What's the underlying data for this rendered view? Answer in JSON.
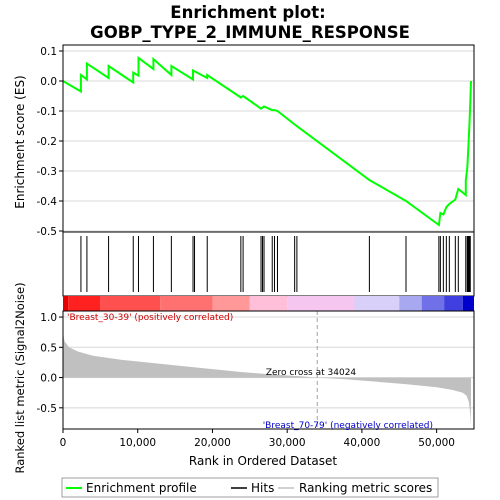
{
  "chart_data": {
    "type": "line",
    "title_line1": "Enrichment plot:",
    "title_line2": "GOBP_TYPE_2_IMMUNE_RESPONSE",
    "es_panel": {
      "ylabel": "Enrichment score (ES)",
      "ylim": [
        -0.5,
        0.1
      ],
      "yticks": [
        {
          "v": 0.1,
          "label": "0.1"
        },
        {
          "v": 0.0,
          "label": "0.0"
        },
        {
          "v": -0.1,
          "label": "-0.1"
        },
        {
          "v": -0.2,
          "label": "-0.2"
        },
        {
          "v": -0.3,
          "label": "-0.3"
        },
        {
          "v": -0.4,
          "label": "-0.4"
        },
        {
          "v": -0.5,
          "label": "-0.5"
        }
      ],
      "series": [
        {
          "name": "Enrichment profile",
          "color": "#00ff00",
          "x": [
            0,
            2400,
            2400,
            3200,
            3200,
            6100,
            6100,
            9400,
            9400,
            10100,
            10100,
            12100,
            12100,
            14500,
            14500,
            17400,
            17400,
            19300,
            19300,
            23800,
            24100,
            26500,
            26900,
            28000,
            28300,
            28700,
            31000,
            41000,
            45900,
            50300,
            50500,
            50900,
            51300,
            51700,
            52500,
            52900,
            53900,
            53900,
            54100,
            54200,
            54300,
            54400,
            54500,
            54600
          ],
          "y": [
            0.0,
            -0.035,
            0.02,
            0.005,
            0.058,
            0.01,
            0.05,
            -0.005,
            0.028,
            0.018,
            0.077,
            0.04,
            0.073,
            0.02,
            0.05,
            0.005,
            0.035,
            0.01,
            0.02,
            -0.055,
            -0.05,
            -0.092,
            -0.085,
            -0.097,
            -0.097,
            -0.1,
            -0.145,
            -0.33,
            -0.4,
            -0.48,
            -0.44,
            -0.445,
            -0.42,
            -0.41,
            -0.395,
            -0.36,
            -0.38,
            -0.33,
            -0.29,
            -0.245,
            -0.19,
            -0.14,
            -0.07,
            0.0
          ]
        }
      ]
    },
    "hits_panel": {
      "name": "Hits",
      "x": [
        2400,
        3200,
        6100,
        9400,
        10100,
        12100,
        14500,
        17400,
        17600,
        19300,
        23800,
        24100,
        26500,
        26700,
        26900,
        28000,
        28300,
        28700,
        31000,
        31300,
        41000,
        45900,
        50300,
        50500,
        50900,
        51300,
        51700,
        52500,
        52900,
        53900,
        54100,
        54200,
        54300,
        54400,
        54500
      ]
    },
    "metric_panel": {
      "ylabel": "Ranked list metric (Signal2Noise)",
      "ylim": [
        -0.85,
        1.1
      ],
      "yticks": [
        {
          "v": 1.0,
          "label": "1.0"
        },
        {
          "v": 0.5,
          "label": "0.5"
        },
        {
          "v": 0.0,
          "label": "0.0"
        },
        {
          "v": -0.5,
          "label": "-0.5"
        }
      ],
      "x": [
        0,
        200,
        800,
        2000,
        4000,
        8000,
        12000,
        16000,
        20000,
        24000,
        28000,
        32000,
        34024,
        38000,
        42000,
        46000,
        50000,
        52000,
        53500,
        54000,
        54300,
        54500,
        54600
      ],
      "y": [
        0.75,
        0.6,
        0.5,
        0.43,
        0.36,
        0.29,
        0.24,
        0.19,
        0.14,
        0.09,
        0.05,
        0.02,
        0.0,
        -0.03,
        -0.07,
        -0.11,
        -0.16,
        -0.2,
        -0.25,
        -0.3,
        -0.4,
        -0.6,
        -0.8
      ],
      "pos_label": "'Breast_30-39' (positively correlated)",
      "neg_label": "'Breast_70-79' (negatively correlated)",
      "zero_cross_label": "Zero cross at 34024",
      "zero_cross": 34024
    },
    "x_axis": {
      "xlabel": "Rank in Ordered Dataset",
      "xlim": [
        0,
        55000
      ],
      "xticks": [
        {
          "v": 0,
          "label": "0"
        },
        {
          "v": 10000,
          "label": "10,000"
        },
        {
          "v": 20000,
          "label": "20,000"
        },
        {
          "v": 30000,
          "label": "30,000"
        },
        {
          "v": 40000,
          "label": "40,000"
        },
        {
          "v": 50000,
          "label": "50,000"
        }
      ]
    },
    "legend": [
      {
        "name": "Enrichment profile",
        "color": "#00ff00"
      },
      {
        "name": "Hits",
        "color": "#000000"
      },
      {
        "name": "Ranking metric scores",
        "color": "#c0c0c0"
      }
    ],
    "colors": {
      "es_line": "#00ff00",
      "metric_fill": "#c0c0c0",
      "grid": "#d8d8d8",
      "pos_label": "#cc0000",
      "neg_label": "#0000cc"
    },
    "heatbar": [
      {
        "x0": 0,
        "x1": 700,
        "color": "#e60000"
      },
      {
        "x0": 700,
        "x1": 5000,
        "color": "#ff2020"
      },
      {
        "x0": 5000,
        "x1": 13000,
        "color": "#ff5050"
      },
      {
        "x0": 13000,
        "x1": 20000,
        "color": "#ff7070"
      },
      {
        "x0": 20000,
        "x1": 25000,
        "color": "#ff9898"
      },
      {
        "x0": 25000,
        "x1": 30000,
        "color": "#ffbfd8"
      },
      {
        "x0": 30000,
        "x1": 39000,
        "color": "#f5c6f0"
      },
      {
        "x0": 39000,
        "x1": 45000,
        "color": "#d8d0f8"
      },
      {
        "x0": 45000,
        "x1": 48000,
        "color": "#a8a8f0"
      },
      {
        "x0": 48000,
        "x1": 51000,
        "color": "#7070e8"
      },
      {
        "x0": 51000,
        "x1": 53500,
        "color": "#4040e0"
      },
      {
        "x0": 53500,
        "x1": 55000,
        "color": "#0000cc"
      }
    ]
  }
}
